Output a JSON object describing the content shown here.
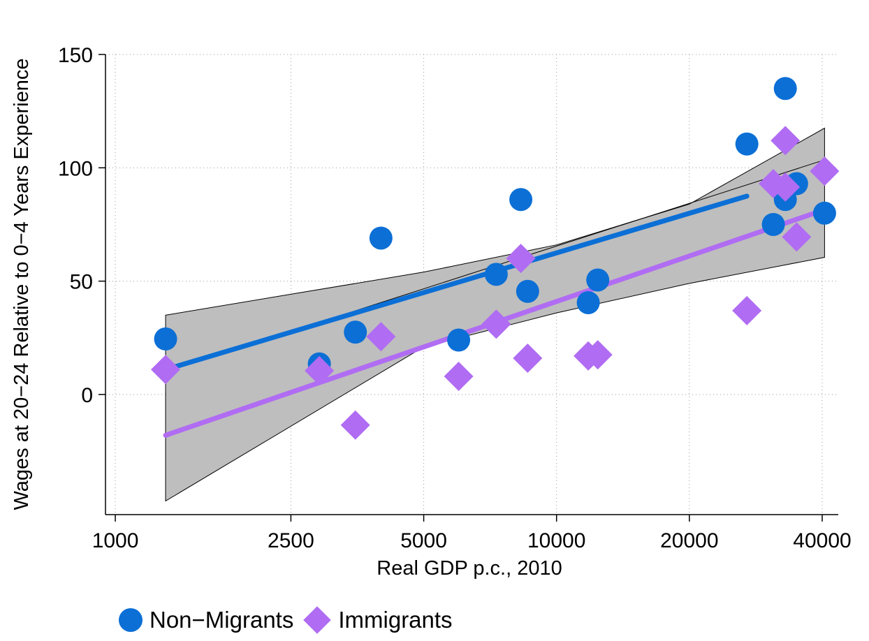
{
  "chart_data": {
    "type": "scatter",
    "xlabel": "Real GDP p.c., 2010",
    "ylabel": "Wages at 20−24 Relative to 0−4 Years Experience",
    "x_scale": "log",
    "xlim": [
      950,
      43500
    ],
    "ylim": [
      -53,
      150
    ],
    "x_ticks": [
      1000,
      2500,
      5000,
      10000,
      20000,
      40000
    ],
    "y_ticks": [
      0,
      50,
      100,
      150
    ],
    "grid": true,
    "legend_position": "bottom",
    "colors": {
      "non_migrants": "#0b6fd6",
      "immigrants": "#b06cf2",
      "ci_fill": "#bebebe"
    },
    "series": [
      {
        "name": "Non−Migrants",
        "marker": "circle",
        "points": [
          [
            1300,
            24.5
          ],
          [
            2900,
            13.5
          ],
          [
            3500,
            27.5
          ],
          [
            4000,
            69
          ],
          [
            6000,
            24
          ],
          [
            7300,
            53
          ],
          [
            8300,
            86
          ],
          [
            8600,
            45.5
          ],
          [
            11800,
            40.5
          ],
          [
            12400,
            50.5
          ],
          [
            27000,
            110.5
          ],
          [
            31000,
            75
          ],
          [
            33000,
            135
          ],
          [
            33000,
            86
          ],
          [
            35000,
            93
          ],
          [
            40500,
            80
          ]
        ]
      },
      {
        "name": "Immigrants",
        "marker": "diamond",
        "points": [
          [
            1300,
            11
          ],
          [
            2900,
            10.5
          ],
          [
            3500,
            -13.5
          ],
          [
            4000,
            25.5
          ],
          [
            6000,
            8
          ],
          [
            7300,
            31
          ],
          [
            8300,
            60
          ],
          [
            8600,
            16
          ],
          [
            11800,
            17
          ],
          [
            12400,
            17.5
          ],
          [
            27000,
            37
          ],
          [
            31000,
            93
          ],
          [
            33000,
            112
          ],
          [
            33000,
            91.5
          ],
          [
            35000,
            69.5
          ],
          [
            40500,
            98.5
          ]
        ]
      }
    ],
    "fit_lines": [
      {
        "series": "Non−Migrants",
        "x": [
          1300,
          27000
        ],
        "y": [
          11,
          87.5
        ]
      },
      {
        "series": "Immigrants",
        "x": [
          1300,
          40500
        ],
        "y": [
          -18,
          81.5
        ]
      }
    ],
    "pooled_fit": {
      "x": [
        1300,
        40500
      ],
      "y": [
        10,
        103.5
      ]
    },
    "confidence_band": {
      "x": [
        1300,
        5000,
        10000,
        20000,
        40500
      ],
      "upper": [
        35,
        54,
        66,
        84,
        117.5
      ],
      "lower": [
        -47,
        21,
        36,
        49,
        60.5
      ]
    }
  }
}
